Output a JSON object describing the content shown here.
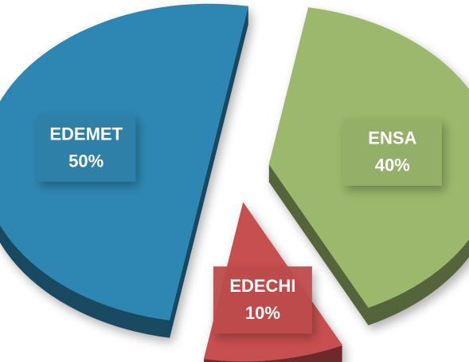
{
  "chart_data": {
    "type": "pie",
    "categories": [
      "ENSA",
      "EDECHI",
      "EDEMET"
    ],
    "values": [
      40,
      10,
      50
    ],
    "value_labels": [
      "40%",
      "10%",
      "50%"
    ],
    "colors": [
      "#9bb86c",
      "#c8504f",
      "#2f87b2"
    ]
  }
}
